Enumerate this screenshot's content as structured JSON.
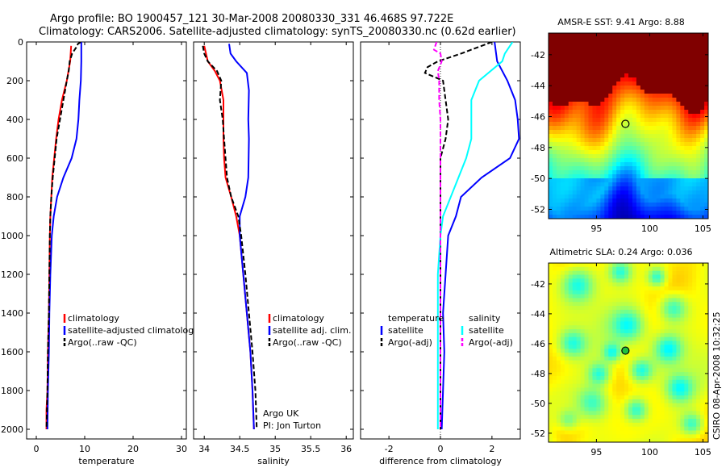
{
  "figure": {
    "title_line1": "Argo profile: BO 1900457_121 30-Mar-2008 20080330_331 46.468S 97.722E",
    "title_line2": "Climatology: CARS2006. Satellite-adjusted climatology: synTS_20080330.nc (0.62d earlier)",
    "credit_line1": "Argo UK",
    "credit_line2": "PI: Jon Turton",
    "footer": "CSIRO 08-Apr-2008 10:32:25"
  },
  "colors": {
    "red": "#ff0000",
    "blue": "#0000ff",
    "black": "#000000",
    "cyan": "#00ffff",
    "magenta": "#ff00ff"
  },
  "chart_data": [
    {
      "type": "line",
      "id": "temperature",
      "xlabel": "temperature",
      "xlim": [
        -2,
        31
      ],
      "ylim": [
        2050,
        0
      ],
      "xticks": [
        0,
        10,
        20,
        30
      ],
      "yticks": [
        0,
        200,
        400,
        600,
        800,
        1000,
        1200,
        1400,
        1600,
        1800,
        2000
      ],
      "legend": {
        "placement": "lower-right",
        "entries": [
          "climatology",
          "satellite-adjusted climatology",
          "Argo(..raw -QC)"
        ]
      },
      "series": [
        {
          "name": "climatology",
          "color": "red",
          "dash": "solid",
          "points": [
            [
              7.2,
              20
            ],
            [
              7.0,
              100
            ],
            [
              6.3,
              200
            ],
            [
              5.3,
              300
            ],
            [
              4.6,
              400
            ],
            [
              4.1,
              500
            ],
            [
              3.7,
              600
            ],
            [
              3.3,
              700
            ],
            [
              3.1,
              800
            ],
            [
              2.9,
              900
            ],
            [
              2.8,
              1000
            ],
            [
              2.7,
              1200
            ],
            [
              2.6,
              1400
            ],
            [
              2.4,
              1600
            ],
            [
              2.3,
              1800
            ],
            [
              2.1,
              1900
            ],
            [
              2.1,
              2000
            ]
          ]
        },
        {
          "name": "satellite-adjusted climatology",
          "color": "blue",
          "dash": "solid",
          "points": [
            [
              9.3,
              0
            ],
            [
              9.3,
              100
            ],
            [
              9.2,
              200
            ],
            [
              8.9,
              300
            ],
            [
              8.7,
              400
            ],
            [
              8.3,
              500
            ],
            [
              7.3,
              600
            ],
            [
              5.6,
              700
            ],
            [
              4.3,
              800
            ],
            [
              3.6,
              900
            ],
            [
              3.2,
              1000
            ],
            [
              2.9,
              1200
            ],
            [
              2.7,
              1400
            ],
            [
              2.6,
              1600
            ],
            [
              2.4,
              1800
            ],
            [
              2.3,
              2000
            ]
          ]
        },
        {
          "name": "Argo(..raw -QC)",
          "color": "black",
          "dash": "dash",
          "points": [
            [
              9.2,
              0
            ],
            [
              8.6,
              10
            ],
            [
              8.2,
              30
            ],
            [
              7.4,
              60
            ],
            [
              6.9,
              100
            ],
            [
              6.7,
              150
            ],
            [
              6.3,
              200
            ],
            [
              5.6,
              300
            ],
            [
              4.9,
              400
            ],
            [
              4.2,
              500
            ],
            [
              3.8,
              600
            ],
            [
              3.4,
              700
            ],
            [
              3.1,
              800
            ],
            [
              2.9,
              900
            ],
            [
              2.8,
              1000
            ],
            [
              2.7,
              1200
            ],
            [
              2.6,
              1400
            ],
            [
              2.4,
              1600
            ],
            [
              2.3,
              1800
            ],
            [
              2.1,
              2000
            ]
          ]
        }
      ]
    },
    {
      "type": "line",
      "id": "salinity",
      "xlabel": "salinity",
      "xlim": [
        33.85,
        36.1
      ],
      "ylim": [
        2050,
        0
      ],
      "xticks": [
        34,
        34.5,
        35,
        35.5,
        36
      ],
      "yticks": [],
      "legend": {
        "placement": "lower-right",
        "entries": [
          "climatology",
          "satellite adj. clim.",
          "Argo(..raw -QC)"
        ]
      },
      "series": [
        {
          "name": "climatology",
          "color": "red",
          "dash": "solid",
          "points": [
            [
              34.0,
              20
            ],
            [
              34.05,
              100
            ],
            [
              34.15,
              150
            ],
            [
              34.22,
              200
            ],
            [
              34.27,
              300
            ],
            [
              34.27,
              400
            ],
            [
              34.27,
              500
            ],
            [
              34.28,
              600
            ],
            [
              34.3,
              700
            ],
            [
              34.38,
              800
            ],
            [
              34.45,
              900
            ],
            [
              34.5,
              1000
            ],
            [
              34.55,
              1200
            ],
            [
              34.6,
              1400
            ],
            [
              34.65,
              1600
            ],
            [
              34.68,
              1800
            ],
            [
              34.7,
              2000
            ]
          ]
        },
        {
          "name": "satellite adj. clim.",
          "color": "blue",
          "dash": "solid",
          "points": [
            [
              34.35,
              10
            ],
            [
              34.37,
              60
            ],
            [
              34.45,
              100
            ],
            [
              34.6,
              160
            ],
            [
              34.63,
              250
            ],
            [
              34.62,
              400
            ],
            [
              34.63,
              500
            ],
            [
              34.62,
              700
            ],
            [
              34.58,
              800
            ],
            [
              34.5,
              900
            ],
            [
              34.5,
              1000
            ],
            [
              34.55,
              1200
            ],
            [
              34.6,
              1400
            ],
            [
              34.65,
              1600
            ],
            [
              34.68,
              1800
            ],
            [
              34.7,
              2000
            ]
          ]
        },
        {
          "name": "Argo(..raw -QC)",
          "color": "black",
          "dash": "dash",
          "points": [
            [
              33.98,
              20
            ],
            [
              34.0,
              60
            ],
            [
              34.05,
              100
            ],
            [
              34.18,
              150
            ],
            [
              34.24,
              200
            ],
            [
              34.22,
              300
            ],
            [
              34.26,
              400
            ],
            [
              34.28,
              500
            ],
            [
              34.3,
              600
            ],
            [
              34.32,
              700
            ],
            [
              34.38,
              800
            ],
            [
              34.48,
              900
            ],
            [
              34.52,
              1000
            ],
            [
              34.58,
              1200
            ],
            [
              34.63,
              1400
            ],
            [
              34.68,
              1600
            ],
            [
              34.72,
              1800
            ],
            [
              34.74,
              2000
            ]
          ]
        }
      ]
    },
    {
      "type": "line",
      "id": "difference",
      "xlabel": "difference from climatology",
      "xlim": [
        -3.1,
        3.1
      ],
      "ylim": [
        2050,
        0
      ],
      "xticks": [
        -2,
        0,
        2
      ],
      "yticks": [],
      "legend": {
        "placement": "lower",
        "headers": [
          "temperature",
          "salinity"
        ],
        "entries": [
          "satellite",
          "Argo(-adj)",
          "satellite",
          "Argo(-adj)"
        ]
      },
      "series": [
        {
          "name": "temperature satellite",
          "color": "blue",
          "dash": "solid",
          "points": [
            [
              2.1,
              0
            ],
            [
              2.2,
              100
            ],
            [
              2.6,
              200
            ],
            [
              2.9,
              300
            ],
            [
              3.0,
              400
            ],
            [
              3.05,
              500
            ],
            [
              2.7,
              600
            ],
            [
              1.6,
              700
            ],
            [
              0.8,
              800
            ],
            [
              0.6,
              900
            ],
            [
              0.3,
              1000
            ],
            [
              0.2,
              1200
            ],
            [
              0.1,
              1400
            ],
            [
              0.15,
              1600
            ],
            [
              0.1,
              1800
            ],
            [
              0.05,
              2000
            ]
          ]
        },
        {
          "name": "temperature Argo(-adj)",
          "color": "black",
          "dash": "dash",
          "points": [
            [
              2.0,
              0
            ],
            [
              1.4,
              30
            ],
            [
              0.8,
              60
            ],
            [
              -0.1,
              100
            ],
            [
              -0.5,
              130
            ],
            [
              -0.6,
              160
            ],
            [
              0.1,
              200
            ],
            [
              0.2,
              300
            ],
            [
              0.3,
              400
            ],
            [
              0.2,
              500
            ],
            [
              0.0,
              600
            ],
            [
              0.0,
              800
            ],
            [
              0.0,
              1000
            ],
            [
              0.0,
              1200
            ],
            [
              0.0,
              1400
            ],
            [
              0.0,
              1600
            ],
            [
              0.0,
              1800
            ],
            [
              0.0,
              2000
            ]
          ]
        },
        {
          "name": "salinity satellite",
          "color": "cyan",
          "dash": "solid",
          "points": [
            [
              2.8,
              0
            ],
            [
              2.5,
              60
            ],
            [
              2.4,
              100
            ],
            [
              1.5,
              200
            ],
            [
              1.2,
              300
            ],
            [
              1.2,
              400
            ],
            [
              1.2,
              500
            ],
            [
              1.0,
              600
            ],
            [
              0.4,
              800
            ],
            [
              0.1,
              900
            ],
            [
              0.0,
              1000
            ],
            [
              -0.1,
              1200
            ],
            [
              -0.1,
              1400
            ],
            [
              -0.1,
              1600
            ],
            [
              -0.1,
              1800
            ],
            [
              -0.1,
              2000
            ]
          ]
        },
        {
          "name": "salinity Argo(-adj)",
          "color": "magenta",
          "dash": "dash",
          "points": [
            [
              -0.15,
              0
            ],
            [
              -0.25,
              40
            ],
            [
              0.0,
              60
            ],
            [
              0.05,
              100
            ],
            [
              -0.1,
              150
            ],
            [
              -0.05,
              200
            ],
            [
              -0.05,
              300
            ],
            [
              0.0,
              400
            ],
            [
              0.0,
              500
            ],
            [
              0.0,
              600
            ],
            [
              0.0,
              800
            ],
            [
              0.0,
              1000
            ],
            [
              0.0,
              1200
            ],
            [
              0.0,
              1400
            ],
            [
              0.0,
              1600
            ],
            [
              0.0,
              1800
            ],
            [
              0.0,
              2000
            ]
          ]
        }
      ]
    },
    {
      "type": "heatmap",
      "id": "sst-map",
      "title": "AMSR-E SST: 9.41  Argo: 8.88",
      "xlim": [
        90.5,
        105.5
      ],
      "ylim": [
        -52.6,
        -40.6
      ],
      "xticks": [
        95,
        100,
        105
      ],
      "yticks": [
        -42,
        -44,
        -46,
        -48,
        -50,
        -52
      ],
      "marker": {
        "lon": 97.722,
        "lat": -46.468,
        "fill": "none"
      }
    },
    {
      "type": "heatmap",
      "id": "sla-map",
      "title": "Altimetric SLA: 0.24  Argo: 0.036",
      "xlim": [
        90.5,
        105.5
      ],
      "ylim": [
        -52.6,
        -40.6
      ],
      "xticks": [
        95,
        100,
        105
      ],
      "yticks": [
        -42,
        -44,
        -46,
        -48,
        -50,
        -52
      ],
      "marker": {
        "lon": 97.722,
        "lat": -46.468,
        "fill": "#20c040"
      }
    }
  ]
}
